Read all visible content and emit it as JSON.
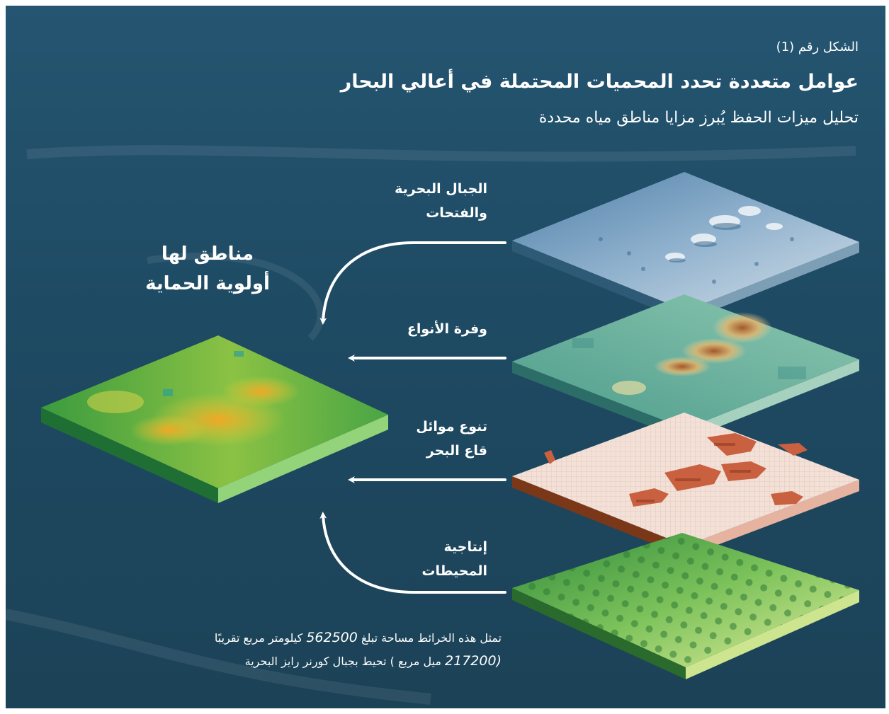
{
  "figure": {
    "number_label": "الشكل رقم (1)",
    "title": "عوامل متعددة تحدد المحميات المحتملة في أعالي البحار",
    "subtitle": "تحليل ميزات الحفظ يُبرز مزايا مناطق مياه محددة"
  },
  "result": {
    "label_line1": "مناطق لها",
    "label_line2": "أولوية الحماية"
  },
  "layers": [
    {
      "line1": "الجبال البحرية",
      "line2": "والفتحات"
    },
    {
      "line1": "وفرة الأنواع",
      "line2": ""
    },
    {
      "line1": "تنوع موائل",
      "line2": "قاع البحر"
    },
    {
      "line1": "إنتاجية",
      "line2": "المحيطات"
    }
  ],
  "footnote": {
    "line1_pre": "تمثل هذه الخرائط مساحة تبلغ",
    "line1_num": "562500",
    "line1_post": "كيلومتر مربع تقريبًا",
    "line2_open": "(",
    "line2_num": "217200",
    "line2_post": "ميل مربع ) تحيط بجبال كورنر رايز البحرية"
  },
  "colors": {
    "background": "#245370",
    "arrow": "#ffffff",
    "seamounts": "#5b8db7",
    "species": "#6bb3a0",
    "species_hot": "#b86a2c",
    "habitat": "#f2dcd3",
    "habitat_blocks": "#cc6748",
    "productivity": "#6db654",
    "priority": "#58b03f",
    "priority_hot": "#f0a020"
  }
}
